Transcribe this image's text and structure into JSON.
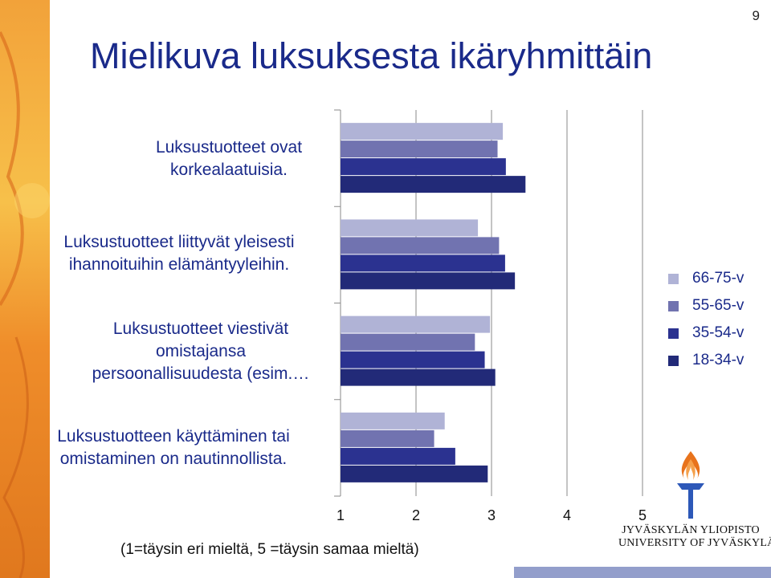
{
  "page_number": "9",
  "title": "Mielikuva luksuksesta ikäryhmittäin",
  "logo": {
    "line1": "JYVÄSKYLÄN YLIOPISTO",
    "line2": "UNIVERSITY OF JYVÄSKYLÄ",
    "colors": {
      "flame": "#e8731c",
      "torch": "#2d58b8"
    }
  },
  "chart_data": {
    "type": "bar",
    "orientation": "horizontal",
    "title": "",
    "xlabel": "(1=täysin eri mieltä, 5 =täysin samaa mieltä)",
    "ylabel": "",
    "xlim": [
      1,
      5
    ],
    "x_ticks": [
      "1",
      "2",
      "3",
      "4",
      "5"
    ],
    "grid": true,
    "legend_position": "right",
    "categories": [
      "Luksustuotteet ovat\nkorkealaatuisia.",
      "Luksustuotteet liittyvät yleisesti\nihannoituihin elämäntyyleihin.",
      "Luksustuotteet viestivät\nomistajansa\npersoonallisuudesta (esim.…",
      "Luksustuotteen käyttäminen tai\nomistaminen on nautinnollista."
    ],
    "series": [
      {
        "name": "66-75-v",
        "color": "#b0b3d6",
        "values": [
          3.15,
          2.82,
          2.98,
          2.38
        ]
      },
      {
        "name": "55-65-v",
        "color": "#7173b0",
        "values": [
          3.08,
          3.1,
          2.78,
          2.24
        ]
      },
      {
        "name": "35-54-v",
        "color": "#2b3290",
        "values": [
          3.19,
          3.18,
          2.91,
          2.52
        ]
      },
      {
        "name": "18-34-v",
        "color": "#222a78",
        "values": [
          3.45,
          3.31,
          3.05,
          2.95
        ]
      }
    ]
  }
}
